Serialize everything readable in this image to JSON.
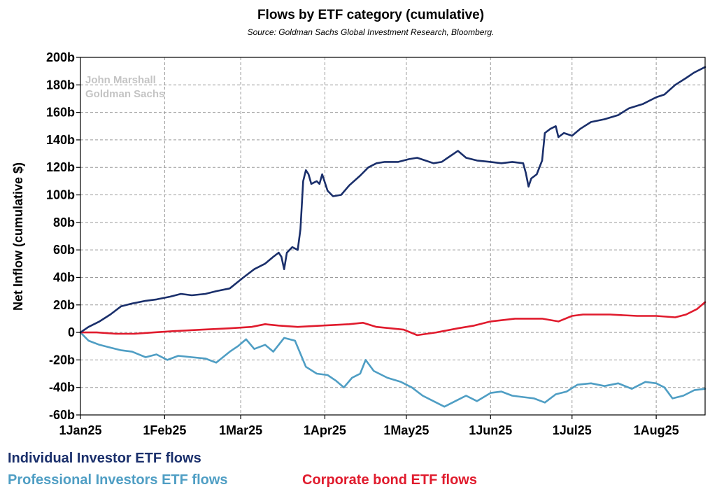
{
  "chart_data": {
    "type": "line",
    "title": "Flows by ETF category (cumulative)",
    "subtitle": "Source: Goldman Sachs Global Investment Research, Bloomberg.",
    "ylabel": "Net Inflow (cumulative $)",
    "xlabel": "",
    "watermark": [
      "John Marshall",
      "Goldman Sachs"
    ],
    "ylim": [
      -60,
      200
    ],
    "yticks": [
      {
        "value": 200,
        "label": "200b"
      },
      {
        "value": 180,
        "label": "180b"
      },
      {
        "value": 160,
        "label": "160b"
      },
      {
        "value": 140,
        "label": "140b"
      },
      {
        "value": 120,
        "label": "120b"
      },
      {
        "value": 100,
        "label": "100b"
      },
      {
        "value": 80,
        "label": "80b"
      },
      {
        "value": 60,
        "label": "60b"
      },
      {
        "value": 40,
        "label": "40b"
      },
      {
        "value": 20,
        "label": "20b"
      },
      {
        "value": 0,
        "label": "0"
      },
      {
        "value": -20,
        "label": "-20b"
      },
      {
        "value": -40,
        "label": "-40b"
      },
      {
        "value": -60,
        "label": "-60b"
      }
    ],
    "xlim": [
      "2025-01-01",
      "2025-08-19"
    ],
    "xticks": [
      {
        "date": "2025-01-01",
        "label": "1Jan25"
      },
      {
        "date": "2025-02-01",
        "label": "1Feb25"
      },
      {
        "date": "2025-03-01",
        "label": "1Mar25"
      },
      {
        "date": "2025-04-01",
        "label": "1Apr25"
      },
      {
        "date": "2025-05-01",
        "label": "1May25"
      },
      {
        "date": "2025-06-01",
        "label": "1Jun25"
      },
      {
        "date": "2025-07-01",
        "label": "1Jul25"
      },
      {
        "date": "2025-08-01",
        "label": "1Aug25"
      }
    ],
    "grid": true,
    "legend_placement": "bottom-left",
    "series": [
      {
        "name": "Individual Investor ETF flows",
        "color": "#1a2f6b",
        "points": [
          [
            "2025-01-01",
            0
          ],
          [
            "2025-01-04",
            4
          ],
          [
            "2025-01-08",
            8
          ],
          [
            "2025-01-12",
            13
          ],
          [
            "2025-01-16",
            19
          ],
          [
            "2025-01-20",
            21
          ],
          [
            "2025-01-25",
            23
          ],
          [
            "2025-01-29",
            24
          ],
          [
            "2025-02-03",
            26
          ],
          [
            "2025-02-07",
            28
          ],
          [
            "2025-02-11",
            27
          ],
          [
            "2025-02-16",
            28
          ],
          [
            "2025-02-20",
            30
          ],
          [
            "2025-02-25",
            32
          ],
          [
            "2025-03-02",
            40
          ],
          [
            "2025-03-06",
            46
          ],
          [
            "2025-03-10",
            50
          ],
          [
            "2025-03-13",
            55
          ],
          [
            "2025-03-15",
            58
          ],
          [
            "2025-03-16",
            55
          ],
          [
            "2025-03-17",
            46
          ],
          [
            "2025-03-18",
            58
          ],
          [
            "2025-03-20",
            62
          ],
          [
            "2025-03-22",
            60
          ],
          [
            "2025-03-23",
            75
          ],
          [
            "2025-03-24",
            110
          ],
          [
            "2025-03-25",
            118
          ],
          [
            "2025-03-26",
            115
          ],
          [
            "2025-03-27",
            108
          ],
          [
            "2025-03-29",
            110
          ],
          [
            "2025-03-30",
            108
          ],
          [
            "2025-03-31",
            115
          ],
          [
            "2025-04-02",
            103
          ],
          [
            "2025-04-04",
            99
          ],
          [
            "2025-04-07",
            100
          ],
          [
            "2025-04-10",
            107
          ],
          [
            "2025-04-14",
            114
          ],
          [
            "2025-04-17",
            120
          ],
          [
            "2025-04-20",
            123
          ],
          [
            "2025-04-23",
            124
          ],
          [
            "2025-04-28",
            124
          ],
          [
            "2025-05-02",
            126
          ],
          [
            "2025-05-05",
            127
          ],
          [
            "2025-05-08",
            125
          ],
          [
            "2025-05-11",
            123
          ],
          [
            "2025-05-14",
            124
          ],
          [
            "2025-05-17",
            128
          ],
          [
            "2025-05-20",
            132
          ],
          [
            "2025-05-23",
            127
          ],
          [
            "2025-05-27",
            125
          ],
          [
            "2025-06-01",
            124
          ],
          [
            "2025-06-05",
            123
          ],
          [
            "2025-06-09",
            124
          ],
          [
            "2025-06-13",
            123
          ],
          [
            "2025-06-14",
            116
          ],
          [
            "2025-06-15",
            106
          ],
          [
            "2025-06-16",
            112
          ],
          [
            "2025-06-18",
            115
          ],
          [
            "2025-06-20",
            125
          ],
          [
            "2025-06-21",
            145
          ],
          [
            "2025-06-23",
            148
          ],
          [
            "2025-06-25",
            150
          ],
          [
            "2025-06-26",
            142
          ],
          [
            "2025-06-28",
            145
          ],
          [
            "2025-07-01",
            143
          ],
          [
            "2025-07-04",
            148
          ],
          [
            "2025-07-08",
            153
          ],
          [
            "2025-07-13",
            155
          ],
          [
            "2025-07-18",
            158
          ],
          [
            "2025-07-22",
            163
          ],
          [
            "2025-07-27",
            166
          ],
          [
            "2025-08-01",
            171
          ],
          [
            "2025-08-04",
            173
          ],
          [
            "2025-08-08",
            180
          ],
          [
            "2025-08-12",
            185
          ],
          [
            "2025-08-15",
            189
          ],
          [
            "2025-08-19",
            193
          ]
        ]
      },
      {
        "name": "Professional Investors ETF flows",
        "color": "#4f9ec4",
        "points": [
          [
            "2025-01-01",
            0
          ],
          [
            "2025-01-04",
            -6
          ],
          [
            "2025-01-08",
            -9
          ],
          [
            "2025-01-12",
            -11
          ],
          [
            "2025-01-16",
            -13
          ],
          [
            "2025-01-20",
            -14
          ],
          [
            "2025-01-25",
            -18
          ],
          [
            "2025-01-29",
            -16
          ],
          [
            "2025-02-02",
            -20
          ],
          [
            "2025-02-06",
            -17
          ],
          [
            "2025-02-11",
            -18
          ],
          [
            "2025-02-16",
            -19
          ],
          [
            "2025-02-20",
            -22
          ],
          [
            "2025-02-25",
            -14
          ],
          [
            "2025-02-28",
            -10
          ],
          [
            "2025-03-03",
            -5
          ],
          [
            "2025-03-06",
            -12
          ],
          [
            "2025-03-10",
            -9
          ],
          [
            "2025-03-13",
            -14
          ],
          [
            "2025-03-17",
            -4
          ],
          [
            "2025-03-21",
            -6
          ],
          [
            "2025-03-25",
            -25
          ],
          [
            "2025-03-29",
            -30
          ],
          [
            "2025-04-02",
            -31
          ],
          [
            "2025-04-05",
            -35
          ],
          [
            "2025-04-08",
            -40
          ],
          [
            "2025-04-11",
            -33
          ],
          [
            "2025-04-14",
            -30
          ],
          [
            "2025-04-16",
            -20
          ],
          [
            "2025-04-19",
            -28
          ],
          [
            "2025-04-24",
            -33
          ],
          [
            "2025-04-29",
            -36
          ],
          [
            "2025-05-03",
            -40
          ],
          [
            "2025-05-07",
            -46
          ],
          [
            "2025-05-11",
            -50
          ],
          [
            "2025-05-15",
            -54
          ],
          [
            "2025-05-19",
            -50
          ],
          [
            "2025-05-23",
            -46
          ],
          [
            "2025-05-27",
            -50
          ],
          [
            "2025-06-01",
            -44
          ],
          [
            "2025-06-05",
            -43
          ],
          [
            "2025-06-09",
            -46
          ],
          [
            "2025-06-13",
            -47
          ],
          [
            "2025-06-17",
            -48
          ],
          [
            "2025-06-21",
            -51
          ],
          [
            "2025-06-25",
            -45
          ],
          [
            "2025-06-29",
            -43
          ],
          [
            "2025-07-03",
            -38
          ],
          [
            "2025-07-08",
            -37
          ],
          [
            "2025-07-13",
            -39
          ],
          [
            "2025-07-18",
            -37
          ],
          [
            "2025-07-23",
            -41
          ],
          [
            "2025-07-28",
            -36
          ],
          [
            "2025-08-01",
            -37
          ],
          [
            "2025-08-04",
            -40
          ],
          [
            "2025-08-07",
            -48
          ],
          [
            "2025-08-11",
            -46
          ],
          [
            "2025-08-15",
            -42
          ],
          [
            "2025-08-19",
            -41
          ]
        ]
      },
      {
        "name": "Corporate bond ETF flows",
        "color": "#e01b2d",
        "points": [
          [
            "2025-01-01",
            0
          ],
          [
            "2025-01-07",
            0
          ],
          [
            "2025-01-14",
            -1
          ],
          [
            "2025-01-21",
            -1
          ],
          [
            "2025-01-28",
            0
          ],
          [
            "2025-02-05",
            1
          ],
          [
            "2025-02-15",
            2
          ],
          [
            "2025-02-25",
            3
          ],
          [
            "2025-03-05",
            4
          ],
          [
            "2025-03-10",
            6
          ],
          [
            "2025-03-15",
            5
          ],
          [
            "2025-03-22",
            4
          ],
          [
            "2025-03-31",
            5
          ],
          [
            "2025-04-10",
            6
          ],
          [
            "2025-04-15",
            7
          ],
          [
            "2025-04-20",
            4
          ],
          [
            "2025-04-30",
            2
          ],
          [
            "2025-05-05",
            -2
          ],
          [
            "2025-05-12",
            0
          ],
          [
            "2025-05-20",
            3
          ],
          [
            "2025-05-26",
            5
          ],
          [
            "2025-06-01",
            8
          ],
          [
            "2025-06-10",
            10
          ],
          [
            "2025-06-20",
            10
          ],
          [
            "2025-06-26",
            8
          ],
          [
            "2025-07-01",
            12
          ],
          [
            "2025-07-05",
            13
          ],
          [
            "2025-07-15",
            13
          ],
          [
            "2025-07-25",
            12
          ],
          [
            "2025-08-01",
            12
          ],
          [
            "2025-08-08",
            11
          ],
          [
            "2025-08-12",
            13
          ],
          [
            "2025-08-16",
            17
          ],
          [
            "2025-08-19",
            22
          ]
        ]
      }
    ]
  }
}
